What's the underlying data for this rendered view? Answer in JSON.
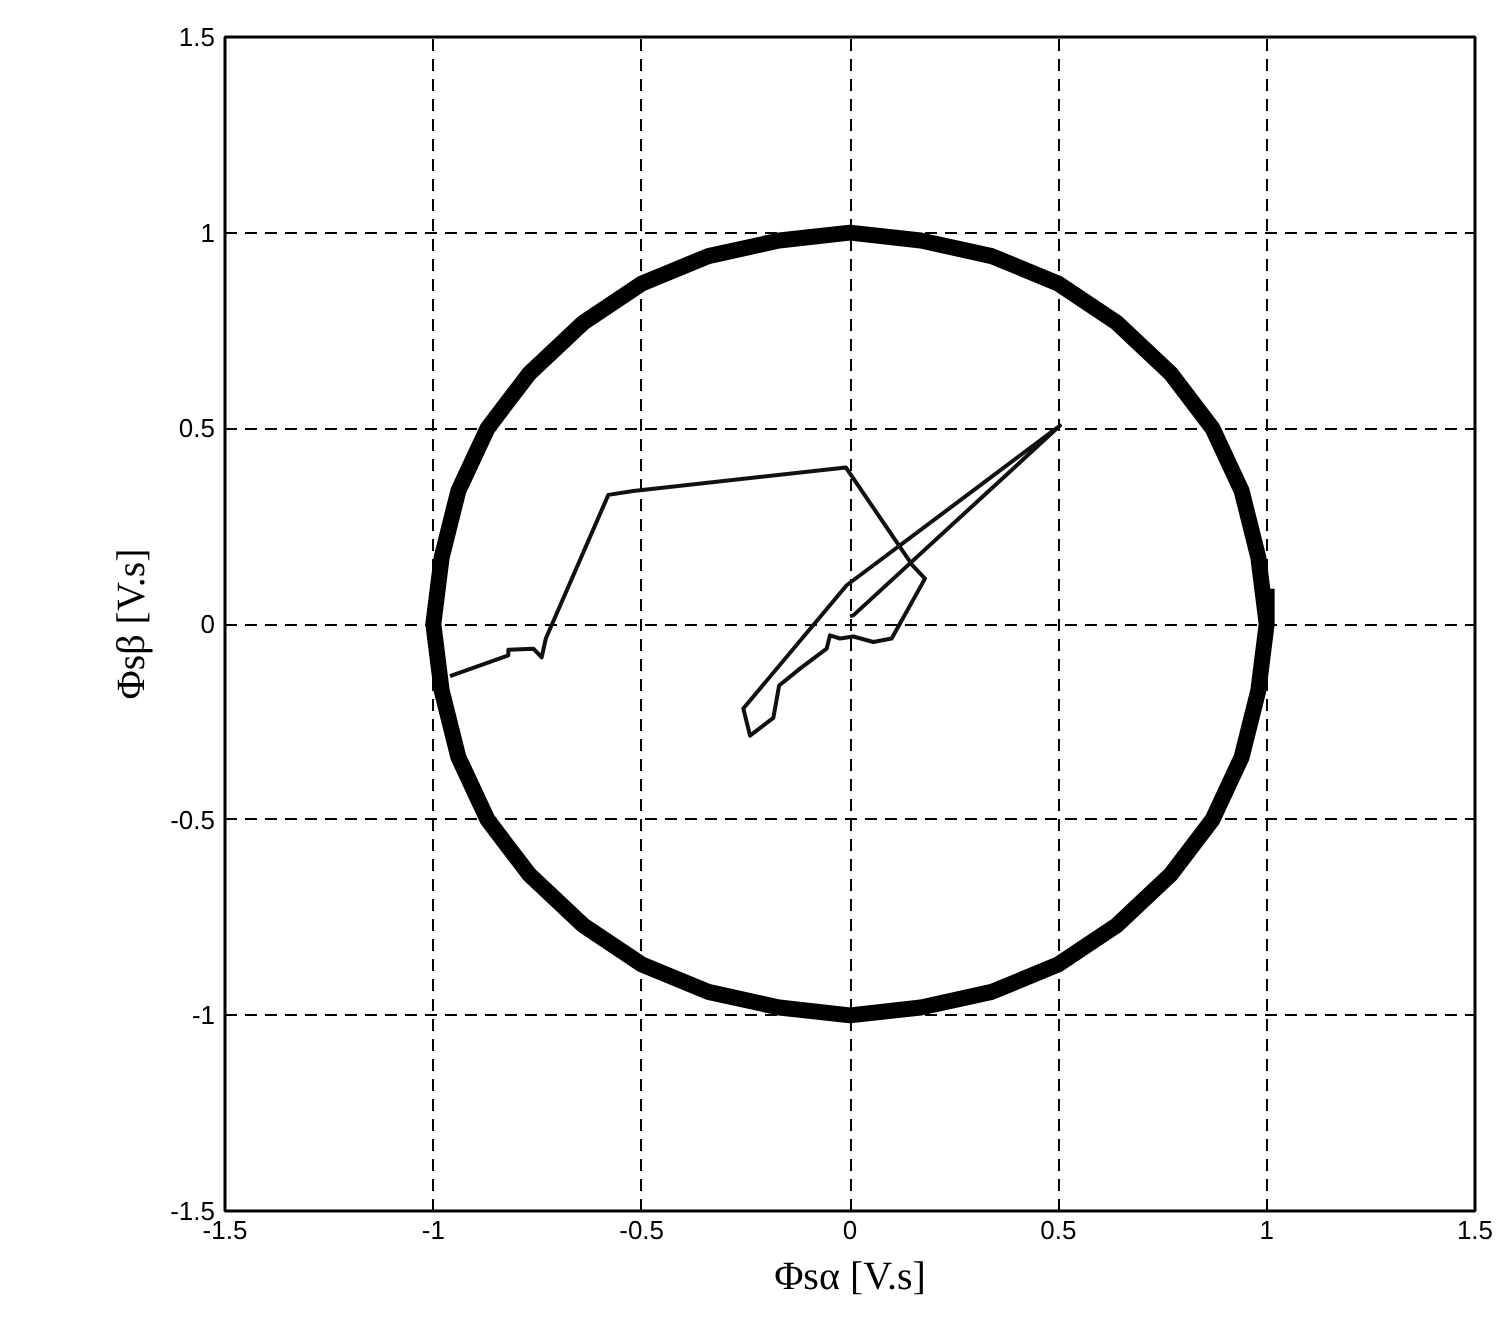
{
  "chart_data": {
    "type": "line",
    "xlabel": "Φsα [V.s]",
    "ylabel": "Φsβ [V.s]",
    "xlim": [
      -1.5,
      1.5
    ],
    "ylim": [
      -1.5,
      1.5
    ],
    "xticks": [
      -1.5,
      -1,
      -0.5,
      0,
      0.5,
      1,
      1.5
    ],
    "yticks": [
      -1.5,
      -1,
      -0.5,
      0,
      0.5,
      1,
      1.5
    ],
    "grid": true,
    "line_style": "solid",
    "series": [
      {
        "color": "#000000",
        "x": [
          1,
          0.98,
          0.94,
          0.87,
          0.77,
          0.64,
          0.5,
          0.34,
          0.17,
          0,
          -0.17,
          -0.34,
          -0.5,
          -0.64,
          -0.77,
          -0.87,
          -0.94,
          -0.98,
          -1,
          -0.98,
          -0.94,
          -0.87,
          -0.77,
          -0.64,
          -0.5,
          -0.34,
          -0.17,
          0,
          0.17,
          0.34,
          0.5,
          0.64,
          0.77,
          0.87,
          0.94,
          0.98,
          1,
          1
        ],
        "values": [
          0,
          0.17,
          0.34,
          0.5,
          0.64,
          0.77,
          0.87,
          0.94,
          0.98,
          1,
          0.98,
          0.94,
          0.87,
          0.77,
          0.64,
          0.5,
          0.34,
          0.17,
          0,
          -0.17,
          -0.34,
          -0.5,
          -0.64,
          -0.77,
          -0.87,
          -0.94,
          -0.98,
          -1,
          -0.98,
          -0.94,
          -0.87,
          -0.77,
          -0.64,
          -0.5,
          -0.34,
          -0.17,
          0,
          0.09
        ]
      },
      {
        "color": "#111111",
        "x": [
          -0.96,
          -0.82,
          -0.82,
          -0.76,
          -0.74,
          -0.73,
          -0.58,
          -0.52,
          -0.01,
          0.15,
          0.18,
          0.1,
          0.056,
          0.008,
          -0.024,
          -0.048,
          -0.056,
          -0.12,
          -0.17,
          -0.184,
          -0.24,
          -0.256,
          -0.008,
          0.504,
          0.008,
          0.0
        ],
        "values": [
          -0.133,
          -0.08,
          -0.066,
          -0.063,
          -0.085,
          -0.037,
          0.33,
          0.34,
          0.4,
          0.15,
          0.116,
          -0.037,
          -0.046,
          -0.032,
          -0.037,
          -0.029,
          -0.063,
          -0.114,
          -0.157,
          -0.24,
          -0.285,
          -0.216,
          0.099,
          0.507,
          0.022,
          0.02
        ]
      }
    ]
  }
}
